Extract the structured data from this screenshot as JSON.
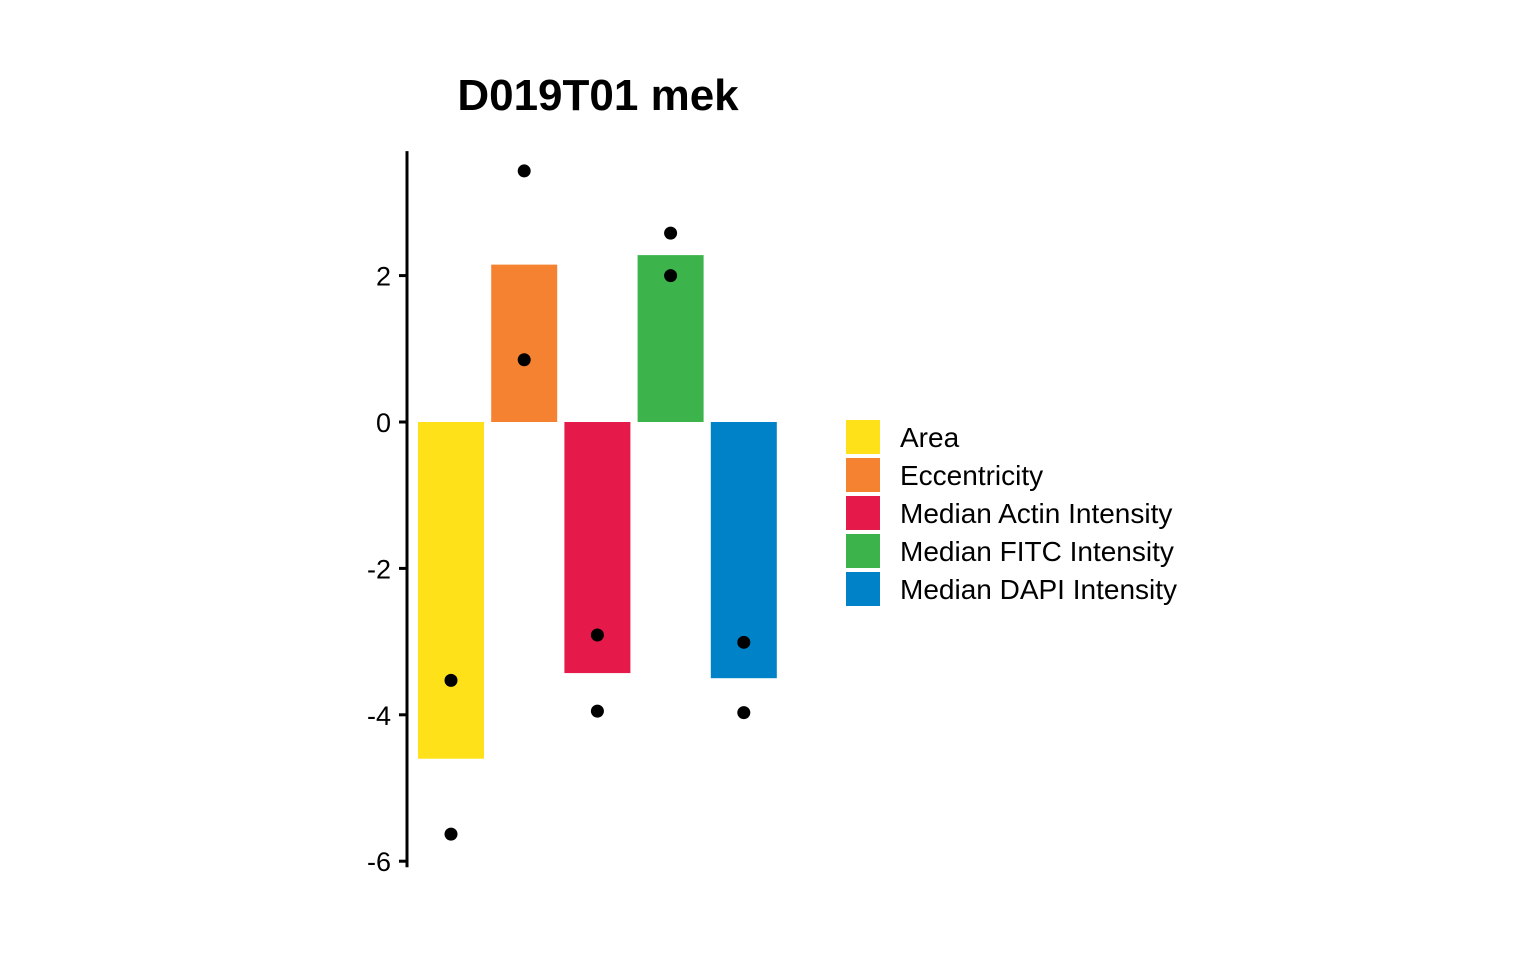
{
  "chart_data": {
    "type": "bar",
    "title": "D019T01 mek",
    "xlabel": "",
    "ylabel": "",
    "ylim": [
      -6,
      3.7
    ],
    "yticks": [
      2,
      0,
      -2,
      -4,
      -6
    ],
    "grid": false,
    "legend_position": "right",
    "categories": [
      "Area",
      "Eccentricity",
      "Median Actin Intensity",
      "Median FITC Intensity",
      "Median DAPI Intensity"
    ],
    "values": [
      -4.6,
      2.15,
      -3.43,
      2.28,
      -3.5
    ],
    "colors": [
      "#FFE119",
      "#F58231",
      "#E6194B",
      "#3CB44B",
      "#0082C8"
    ],
    "points": [
      [
        -3.53,
        -5.63
      ],
      [
        3.43,
        0.85
      ],
      [
        -2.91,
        -3.95
      ],
      [
        2.58,
        2.0
      ],
      [
        -3.01,
        -3.97
      ]
    ]
  }
}
